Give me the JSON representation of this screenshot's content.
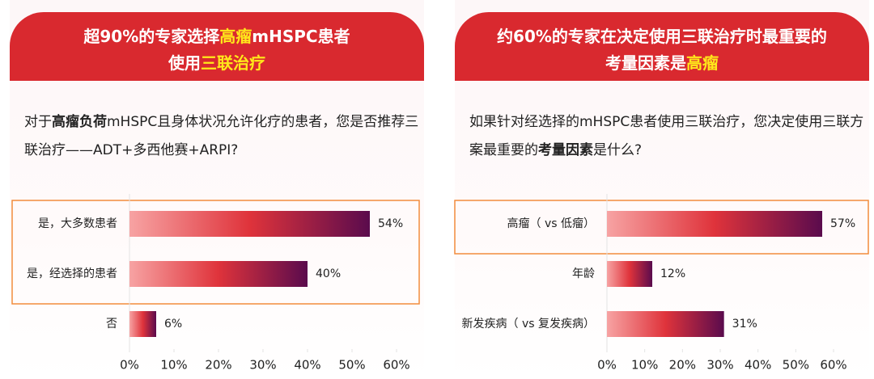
{
  "chart_data": [
    {
      "type": "bar",
      "title": [
        [
          {
            "text": "超90%的专家选择",
            "highlight": false
          },
          {
            "text": "高瘤",
            "highlight": true
          },
          {
            "text": "mHSPC患者",
            "highlight": false
          }
        ],
        [
          {
            "text": "使用",
            "highlight": false
          },
          {
            "text": "三联治疗",
            "highlight": true
          }
        ]
      ],
      "question": [
        {
          "text": "对于",
          "bold": false
        },
        {
          "text": "高瘤负荷",
          "bold": true
        },
        {
          "text": "mHSPC且身体状况允许化疗的患者，您是否推荐三联治疗——ADT+多西他赛+ARPI?",
          "bold": false
        }
      ],
      "categories": [
        "是，大多数患者",
        "是，经选择的患者",
        "否"
      ],
      "values": [
        54,
        40,
        6
      ],
      "value_labels": [
        "54%",
        "40%",
        "6%"
      ],
      "highlight_categories": [
        0,
        1
      ],
      "xlim": [
        0,
        60
      ],
      "xticks": [
        {
          "value": 0,
          "label": "0%"
        },
        {
          "value": 10,
          "label": "10%"
        },
        {
          "value": 20,
          "label": "20%"
        },
        {
          "value": 30,
          "label": "30%"
        },
        {
          "value": 40,
          "label": "40%"
        },
        {
          "value": 50,
          "label": "50%"
        },
        {
          "value": 60,
          "label": "60%"
        }
      ],
      "bar_gradient": [
        "#f7a3a3",
        "#df333b",
        "#5a0b4d"
      ]
    },
    {
      "type": "bar",
      "title": [
        [
          {
            "text": "约60%的专家在决定使用三联治疗时最重要的",
            "highlight": false
          }
        ],
        [
          {
            "text": "考量因素是",
            "highlight": false
          },
          {
            "text": "高瘤",
            "highlight": true
          }
        ]
      ],
      "question": [
        {
          "text": "如果针对经选择的mHSPC患者使用三联治疗，您决定使用三联方案最重要的",
          "bold": false
        },
        {
          "text": "考量因素",
          "bold": true
        },
        {
          "text": "是什么?",
          "bold": false
        }
      ],
      "categories": [
        "高瘤（ vs 低瘤）",
        "年龄",
        "新发疾病（ vs 复发疾病）"
      ],
      "values": [
        57,
        12,
        31
      ],
      "value_labels": [
        "57%",
        "12%",
        "31%"
      ],
      "highlight_categories": [
        0
      ],
      "xlim": [
        0,
        60
      ],
      "xticks": [
        {
          "value": 0,
          "label": "0%"
        },
        {
          "value": 10,
          "label": "10%"
        },
        {
          "value": 20,
          "label": "20%"
        },
        {
          "value": 30,
          "label": "30%"
        },
        {
          "value": 40,
          "label": "40%"
        },
        {
          "value": 50,
          "label": "50%"
        },
        {
          "value": 60,
          "label": "60%"
        }
      ],
      "bar_gradient": [
        "#f7a3a3",
        "#df333b",
        "#5a0b4d"
      ]
    }
  ]
}
